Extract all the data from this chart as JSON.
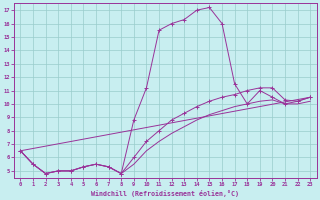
{
  "xlabel": "Windchill (Refroidissement éolien,°C)",
  "bg_color": "#c8eef0",
  "line_color": "#993399",
  "grid_color": "#99cccc",
  "xlim": [
    -0.5,
    23.5
  ],
  "ylim": [
    4.5,
    17.5
  ],
  "yticks": [
    5,
    6,
    7,
    8,
    9,
    10,
    11,
    12,
    13,
    14,
    15,
    16,
    17
  ],
  "xticks": [
    0,
    1,
    2,
    3,
    4,
    5,
    6,
    7,
    8,
    9,
    10,
    11,
    12,
    13,
    14,
    15,
    16,
    17,
    18,
    19,
    20,
    21,
    22,
    23
  ],
  "curve1_x": [
    0,
    1,
    2,
    3,
    4,
    5,
    6,
    7,
    8,
    9,
    10,
    11,
    12,
    13,
    14,
    15,
    16,
    17,
    18,
    19,
    20,
    21,
    22,
    23
  ],
  "curve1_y": [
    6.5,
    5.5,
    4.8,
    5.0,
    5.0,
    5.3,
    5.5,
    5.3,
    4.8,
    8.8,
    11.2,
    15.5,
    16.0,
    16.3,
    17.0,
    17.2,
    16.0,
    11.5,
    10.0,
    11.0,
    10.5,
    10.0,
    10.2,
    10.5
  ],
  "curve2_x": [
    0,
    1,
    2,
    3,
    4,
    5,
    6,
    7,
    8,
    9,
    10,
    11,
    12,
    13,
    14,
    15,
    16,
    17,
    18,
    19,
    20,
    21,
    22,
    23
  ],
  "curve2_y": [
    6.5,
    5.5,
    4.8,
    5.0,
    5.0,
    5.3,
    5.5,
    5.3,
    4.8,
    6.0,
    7.2,
    8.0,
    8.8,
    9.3,
    9.8,
    10.2,
    10.5,
    10.7,
    11.0,
    11.2,
    11.2,
    10.3,
    10.2,
    10.5
  ],
  "curve3_x": [
    0,
    1,
    2,
    3,
    4,
    5,
    6,
    7,
    8,
    9,
    10,
    11,
    12,
    13,
    14,
    15,
    16,
    17,
    18,
    19,
    20,
    21,
    22,
    23
  ],
  "curve3_y": [
    6.5,
    5.5,
    4.8,
    5.0,
    5.0,
    5.3,
    5.5,
    5.3,
    4.8,
    5.5,
    6.5,
    7.2,
    7.8,
    8.3,
    8.8,
    9.2,
    9.5,
    9.8,
    10.0,
    10.2,
    10.3,
    10.0,
    10.0,
    10.2
  ],
  "curve4_x": [
    0,
    23
  ],
  "curve4_y": [
    6.5,
    10.5
  ]
}
